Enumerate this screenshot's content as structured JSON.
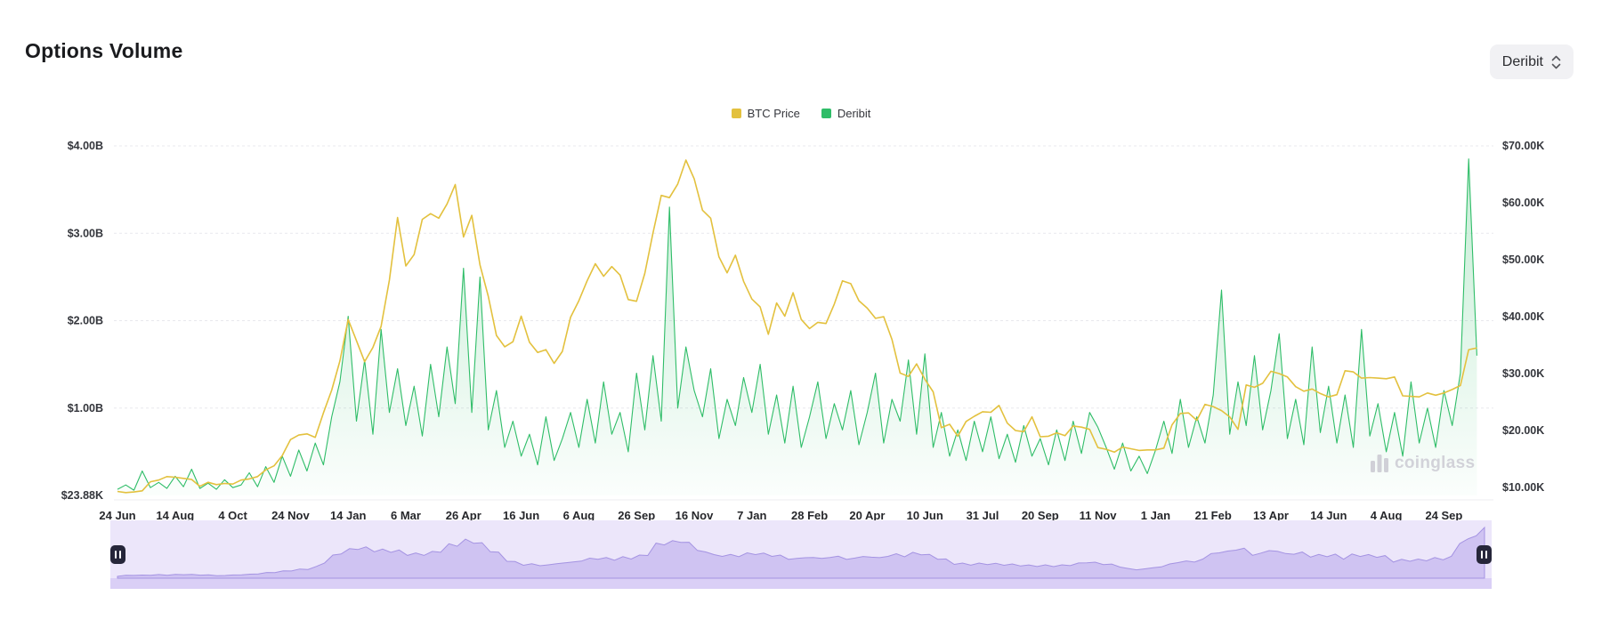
{
  "header": {
    "title": "Options Volume",
    "exchange_selector": {
      "value": "Deribit"
    }
  },
  "legend": [
    {
      "label": "BTC Price",
      "color": "#e3c13e"
    },
    {
      "label": "Deribit",
      "color": "#2fbd68"
    }
  ],
  "watermark": "coinglass",
  "chart_data": {
    "type": "line",
    "title": "Options Volume",
    "legend_position": "top-center",
    "grid": "horizontal-dashed",
    "x_tick_labels": [
      "24 Jun",
      "14 Aug",
      "4 Oct",
      "24 Nov",
      "14 Jan",
      "6 Mar",
      "26 Apr",
      "16 Jun",
      "6 Aug",
      "26 Sep",
      "16 Nov",
      "7 Jan",
      "28 Feb",
      "20 Apr",
      "10 Jun",
      "31 Jul",
      "20 Sep",
      "11 Nov",
      "1 Jan",
      "21 Feb",
      "13 Apr",
      "14 Jun",
      "4 Aug",
      "24 Sep"
    ],
    "points_per_tick": 7,
    "left_axis": {
      "title": "Options volume (USD)",
      "tick_labels": [
        "$4.00B",
        "$3.00B",
        "$2.00B",
        "$1.00B",
        "$23.88K"
      ],
      "tick_values_billions": [
        4,
        3,
        2,
        1,
        0
      ],
      "min_label": "$23.88K",
      "max_billions": 4
    },
    "right_axis": {
      "title": "BTC price (USD)",
      "tick_labels": [
        "$70.00K",
        "$60.00K",
        "$50.00K",
        "$40.00K",
        "$30.00K",
        "$20.00K",
        "$10.00K"
      ],
      "tick_values_thousands": [
        70,
        60,
        50,
        40,
        30,
        20,
        10
      ],
      "range_thousands": [
        10,
        70
      ]
    },
    "series": [
      {
        "name": "BTC Price",
        "type": "line",
        "axis": "right",
        "unit": "USD thousands",
        "color": "#e3c13e",
        "values": [
          9.3,
          9.1,
          9.2,
          9.4,
          11.0,
          11.3,
          11.9,
          11.8,
          11.6,
          11.4,
          10.2,
          10.9,
          10.5,
          10.7,
          10.6,
          11.3,
          11.5,
          11.9,
          13.1,
          13.8,
          15.6,
          18.4,
          19.2,
          19.4,
          18.8,
          23.1,
          27.1,
          32.2,
          39.5,
          35.8,
          32.1,
          34.6,
          38.3,
          46.4,
          57.4,
          48.9,
          50.9,
          57.1,
          58.1,
          57.3,
          59.8,
          63.2,
          54.0,
          57.8,
          49.1,
          43.6,
          36.7,
          34.7,
          35.6,
          40.1,
          35.5,
          33.7,
          34.2,
          31.8,
          33.9,
          39.9,
          42.8,
          46.3,
          49.3,
          47.1,
          48.8,
          47.3,
          43.0,
          42.7,
          47.6,
          54.7,
          61.3,
          60.9,
          63.3,
          67.5,
          64.2,
          58.7,
          57.3,
          50.5,
          47.7,
          50.8,
          46.2,
          43.1,
          41.7,
          36.9,
          42.4,
          40.1,
          44.2,
          39.5,
          37.9,
          39.0,
          38.8,
          42.2,
          46.3,
          45.8,
          42.8,
          41.5,
          39.7,
          40.0,
          36.0,
          30.1,
          29.5,
          31.7,
          29.0,
          26.8,
          20.5,
          21.1,
          19.0,
          21.6,
          22.5,
          23.3,
          23.2,
          24.4,
          21.3,
          20.0,
          19.8,
          22.4,
          18.9,
          19.0,
          19.6,
          19.1,
          20.8,
          20.6,
          20.2,
          17.0,
          16.7,
          16.2,
          17.1,
          16.8,
          16.5,
          16.6,
          16.6,
          16.9,
          21.0,
          23.0,
          23.1,
          21.8,
          24.6,
          24.2,
          23.5,
          22.4,
          20.2,
          28.0,
          27.6,
          28.3,
          30.4,
          30.0,
          29.4,
          27.7,
          26.9,
          27.3,
          26.5,
          25.9,
          26.3,
          30.5,
          30.3,
          29.2,
          29.3,
          29.2,
          29.1,
          29.4,
          26.1,
          26.0,
          25.9,
          26.6,
          26.2,
          26.6,
          27.2,
          27.9,
          34.2,
          34.5
        ]
      },
      {
        "name": "Deribit",
        "type": "area",
        "axis": "left",
        "unit": "USD billions",
        "color": "#2fbd68",
        "fill": "rgba(47,189,104,0.22)",
        "values": [
          0.07,
          0.12,
          0.06,
          0.28,
          0.09,
          0.15,
          0.08,
          0.22,
          0.1,
          0.3,
          0.08,
          0.14,
          0.07,
          0.18,
          0.09,
          0.12,
          0.26,
          0.1,
          0.33,
          0.15,
          0.45,
          0.22,
          0.52,
          0.28,
          0.6,
          0.35,
          0.9,
          1.3,
          2.05,
          0.85,
          1.55,
          0.7,
          1.9,
          0.95,
          1.45,
          0.8,
          1.25,
          0.68,
          1.5,
          0.9,
          1.7,
          1.05,
          2.6,
          0.95,
          2.5,
          0.75,
          1.2,
          0.55,
          0.85,
          0.45,
          0.7,
          0.35,
          0.9,
          0.4,
          0.65,
          0.95,
          0.55,
          1.1,
          0.6,
          1.3,
          0.7,
          0.95,
          0.5,
          1.4,
          0.75,
          1.6,
          0.85,
          3.3,
          1.0,
          1.7,
          1.2,
          0.9,
          1.45,
          0.65,
          1.1,
          0.8,
          1.35,
          0.95,
          1.5,
          0.7,
          1.15,
          0.6,
          1.25,
          0.55,
          0.9,
          1.3,
          0.65,
          1.05,
          0.75,
          1.2,
          0.58,
          0.95,
          1.4,
          0.6,
          1.1,
          0.85,
          1.55,
          0.7,
          1.62,
          0.55,
          0.95,
          0.45,
          0.75,
          0.4,
          0.85,
          0.5,
          0.9,
          0.42,
          0.7,
          0.38,
          0.8,
          0.45,
          0.65,
          0.35,
          0.75,
          0.4,
          0.85,
          0.48,
          0.95,
          0.78,
          0.55,
          0.3,
          0.6,
          0.28,
          0.45,
          0.25,
          0.52,
          0.85,
          0.48,
          1.1,
          0.55,
          0.9,
          0.6,
          1.15,
          2.35,
          0.7,
          1.3,
          0.8,
          1.6,
          0.75,
          1.2,
          1.85,
          0.65,
          1.1,
          0.58,
          1.7,
          0.72,
          1.25,
          0.6,
          1.15,
          0.55,
          1.9,
          0.68,
          1.05,
          0.5,
          0.95,
          0.45,
          1.3,
          0.6,
          1.0,
          0.55,
          1.2,
          0.8,
          1.4,
          3.85,
          1.6
        ]
      }
    ]
  },
  "navigator": {
    "background": "#ece6fa",
    "strip_color": "#dacff6",
    "area_fill": "#cfc3f2",
    "line_color": "#a493e2",
    "handle_color": "#26263a"
  }
}
